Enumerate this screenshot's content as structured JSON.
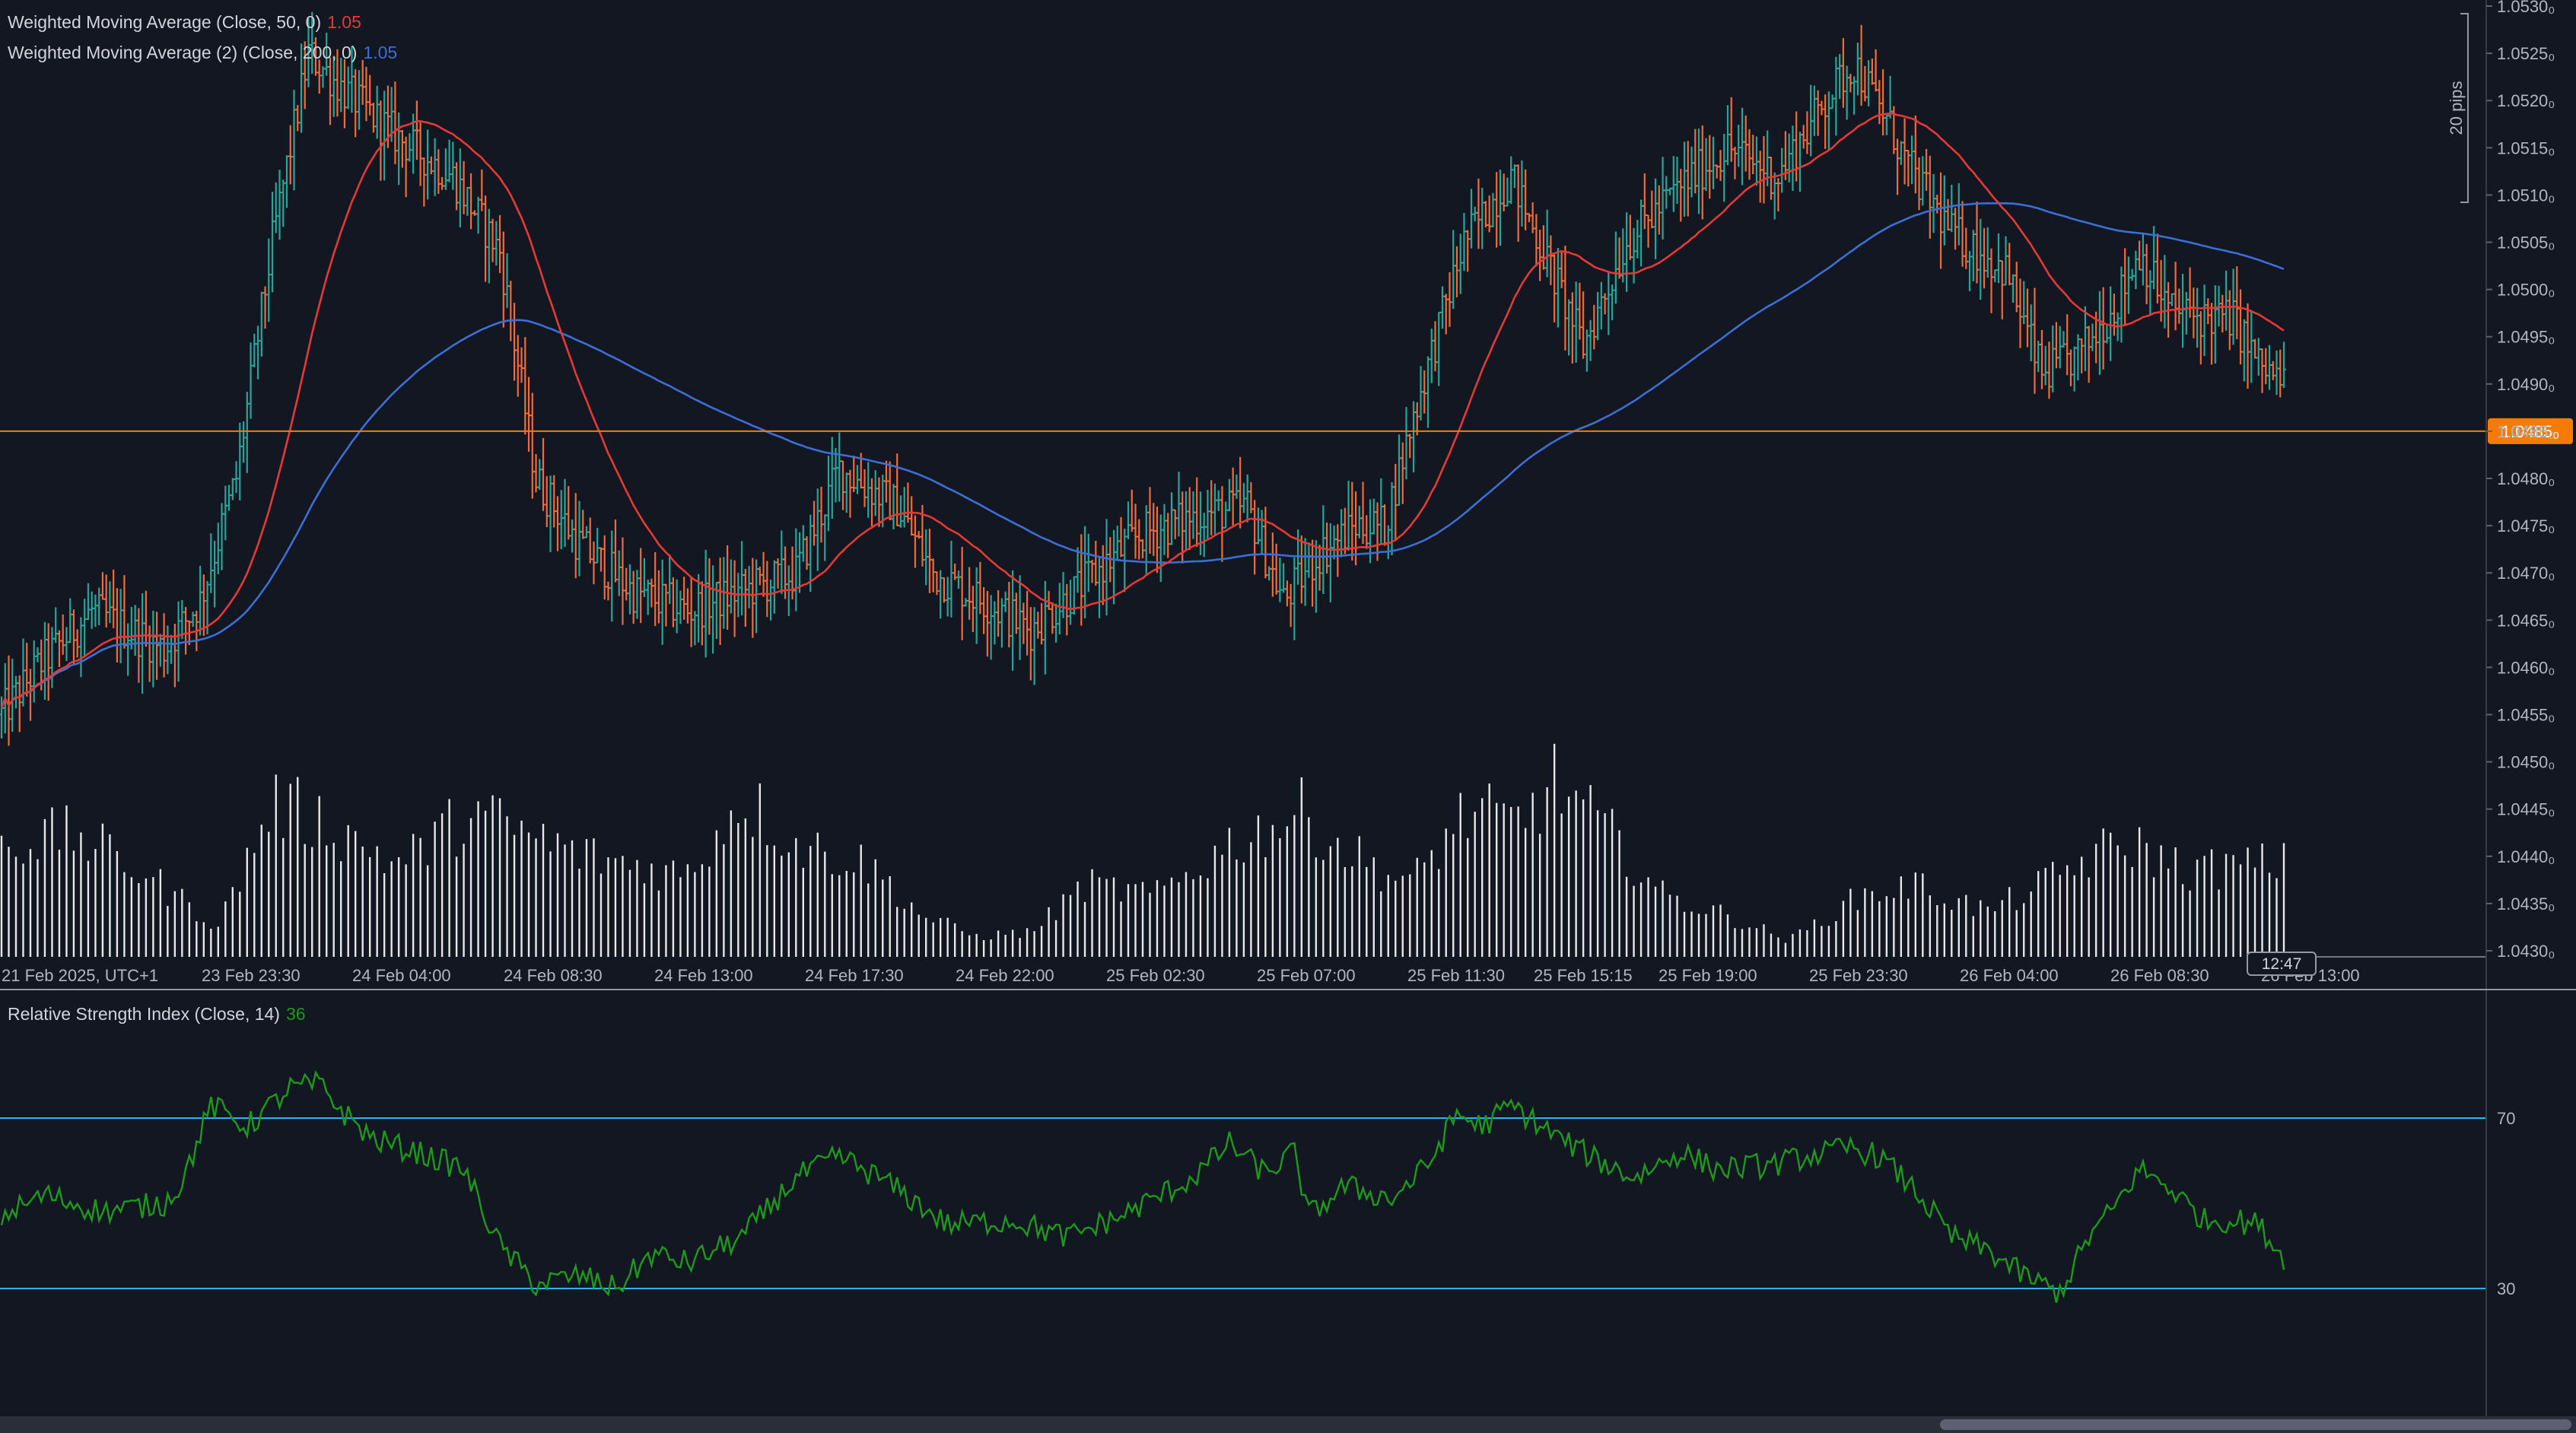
{
  "colors": {
    "background": "#131722",
    "up": "#26a69a",
    "down": "#ef6c3a",
    "wma50": "#e53935",
    "wma200": "#3b6fd6",
    "rsi": "#1b9a1b",
    "rsi_levels": "#29b6f6",
    "price_line": "#f57c00",
    "volume": "#e8e8e8",
    "axis_text": "#b2b5be"
  },
  "indicators": {
    "wma50_label": "Weighted Moving Average (Close, 50, 0)",
    "wma50_value": "1.05",
    "wma200_label": "Weighted Moving Average (2) (Close, 200, 0)",
    "wma200_value": "1.05",
    "rsi_label": "Relative Strength Index (Close, 14)",
    "rsi_value": "36"
  },
  "price_axis": {
    "ticks": [
      "1.0530₀",
      "1.0525₀",
      "1.0520₀",
      "1.0515₀",
      "1.0510₀",
      "1.0505₀",
      "1.0500₀",
      "1.0495₀",
      "1.0490₀",
      "1.0485₀",
      "1.0480₀",
      "1.0475₀",
      "1.0470₀",
      "1.0465₀",
      "1.0460₀",
      "1.0455₀",
      "1.0450₀",
      "1.0445₀",
      "1.0440₀",
      "1.0435₀",
      "1.0430₀"
    ],
    "current_price_label": "1.0485₀",
    "pips_label": "20 pips"
  },
  "time_axis": {
    "labels": [
      "21 Feb 2025, UTC+1",
      "23 Feb 23:30",
      "24 Feb 04:00",
      "24 Feb 08:30",
      "24 Feb 13:00",
      "24 Feb 17:30",
      "24 Feb 22:00",
      "25 Feb 02:30",
      "25 Feb 07:00",
      "25 Feb 11:30",
      "25 Feb 15:15",
      "25 Feb 19:00",
      "25 Feb 23:30",
      "26 Feb 04:00",
      "26 Feb 08:30",
      "26 Feb 13:00"
    ],
    "cursor_label": "12:47"
  },
  "rsi_axis": {
    "levels": [
      "70",
      "30"
    ]
  },
  "chart_data": {
    "type": "candlestick",
    "ylim": [
      1.043,
      1.053
    ],
    "current_price": 1.0485,
    "rsi_levels": [
      70,
      30
    ],
    "price_path_knots": [
      [
        0,
        1.0455
      ],
      [
        10,
        1.046
      ],
      [
        25,
        1.0466
      ],
      [
        45,
        1.0462
      ],
      [
        55,
        1.0467
      ],
      [
        65,
        1.048
      ],
      [
        75,
        1.0505
      ],
      [
        85,
        1.0525
      ],
      [
        95,
        1.0521
      ],
      [
        110,
        1.0516
      ],
      [
        125,
        1.0512
      ],
      [
        138,
        1.0504
      ],
      [
        148,
        1.048
      ],
      [
        160,
        1.0473
      ],
      [
        175,
        1.0468
      ],
      [
        190,
        1.0466
      ],
      [
        205,
        1.0468
      ],
      [
        220,
        1.047
      ],
      [
        232,
        1.0481
      ],
      [
        248,
        1.0477
      ],
      [
        258,
        1.047
      ],
      [
        272,
        1.0467
      ],
      [
        285,
        1.0464
      ],
      [
        300,
        1.0469
      ],
      [
        315,
        1.0474
      ],
      [
        330,
        1.0476
      ],
      [
        345,
        1.0477
      ],
      [
        355,
        1.0467
      ],
      [
        365,
        1.0472
      ],
      [
        375,
        1.0475
      ],
      [
        383,
        1.0475
      ],
      [
        392,
        1.0488
      ],
      [
        405,
        1.0505
      ],
      [
        418,
        1.0512
      ],
      [
        428,
        1.0503
      ],
      [
        438,
        1.0494
      ],
      [
        450,
        1.0505
      ],
      [
        465,
        1.0511
      ],
      [
        478,
        1.0515
      ],
      [
        492,
        1.0512
      ],
      [
        505,
        1.052
      ],
      [
        513,
        1.0524
      ],
      [
        522,
        1.0518
      ],
      [
        528,
        1.0513
      ],
      [
        540,
        1.0506
      ],
      [
        555,
        1.0502
      ],
      [
        565,
        1.0491
      ],
      [
        575,
        1.0493
      ],
      [
        585,
        1.0498
      ],
      [
        592,
        1.0504
      ],
      [
        600,
        1.0498
      ],
      [
        610,
        1.0497
      ],
      [
        618,
        1.0497
      ],
      [
        625,
        1.0492
      ],
      [
        632,
        1.049
      ]
    ],
    "volume_profile_knots": [
      [
        0,
        0.55
      ],
      [
        20,
        0.6
      ],
      [
        40,
        0.4
      ],
      [
        60,
        0.15
      ],
      [
        75,
        0.75
      ],
      [
        90,
        0.65
      ],
      [
        110,
        0.45
      ],
      [
        130,
        0.7
      ],
      [
        145,
        0.6
      ],
      [
        160,
        0.5
      ],
      [
        190,
        0.4
      ],
      [
        205,
        0.78
      ],
      [
        220,
        0.55
      ],
      [
        240,
        0.45
      ],
      [
        255,
        0.2
      ],
      [
        270,
        0.1
      ],
      [
        285,
        0.12
      ],
      [
        300,
        0.35
      ],
      [
        320,
        0.3
      ],
      [
        340,
        0.55
      ],
      [
        360,
        0.7
      ],
      [
        372,
        0.52
      ],
      [
        390,
        0.35
      ],
      [
        405,
        0.7
      ],
      [
        420,
        0.65
      ],
      [
        430,
        0.85
      ],
      [
        445,
        0.6
      ],
      [
        460,
        0.3
      ],
      [
        478,
        0.2
      ],
      [
        495,
        0.08
      ],
      [
        515,
        0.3
      ],
      [
        530,
        0.35
      ],
      [
        550,
        0.22
      ],
      [
        565,
        0.35
      ],
      [
        580,
        0.5
      ],
      [
        590,
        0.55
      ],
      [
        605,
        0.42
      ],
      [
        625,
        0.45
      ]
    ],
    "rsi_knots": [
      [
        0,
        47
      ],
      [
        12,
        52
      ],
      [
        28,
        48
      ],
      [
        45,
        50
      ],
      [
        50,
        55
      ],
      [
        58,
        73
      ],
      [
        68,
        68
      ],
      [
        80,
        77
      ],
      [
        88,
        78
      ],
      [
        95,
        71
      ],
      [
        103,
        65
      ],
      [
        115,
        62
      ],
      [
        128,
        58
      ],
      [
        138,
        40
      ],
      [
        148,
        31
      ],
      [
        160,
        33
      ],
      [
        170,
        30
      ],
      [
        180,
        38
      ],
      [
        190,
        36
      ],
      [
        205,
        42
      ],
      [
        220,
        56
      ],
      [
        232,
        61
      ],
      [
        245,
        55
      ],
      [
        262,
        45
      ],
      [
        280,
        46
      ],
      [
        295,
        42
      ],
      [
        310,
        47
      ],
      [
        330,
        56
      ],
      [
        340,
        64
      ],
      [
        350,
        57
      ],
      [
        358,
        62
      ],
      [
        362,
        47
      ],
      [
        372,
        54
      ],
      [
        385,
        51
      ],
      [
        395,
        59
      ],
      [
        403,
        71
      ],
      [
        410,
        68
      ],
      [
        418,
        73
      ],
      [
        430,
        66
      ],
      [
        440,
        61
      ],
      [
        452,
        56
      ],
      [
        465,
        62
      ],
      [
        475,
        58
      ],
      [
        490,
        59
      ],
      [
        500,
        61
      ],
      [
        512,
        63
      ],
      [
        520,
        61
      ],
      [
        530,
        53
      ],
      [
        540,
        42
      ],
      [
        550,
        39
      ],
      [
        560,
        33
      ],
      [
        570,
        29
      ],
      [
        578,
        42
      ],
      [
        585,
        49
      ],
      [
        592,
        58
      ],
      [
        600,
        54
      ],
      [
        610,
        46
      ],
      [
        618,
        46
      ],
      [
        625,
        45
      ],
      [
        632,
        37
      ]
    ]
  }
}
